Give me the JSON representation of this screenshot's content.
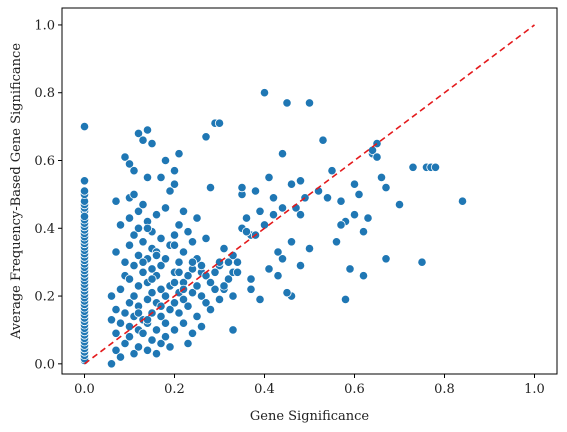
{
  "chart_data": {
    "type": "scatter",
    "title": "",
    "xlabel": "Gene Significance",
    "ylabel": "Average Frequency-Based Gene Significance",
    "xlim": [
      -0.05,
      1.05
    ],
    "ylim": [
      -0.03,
      1.05
    ],
    "x_ticks": [
      "0.0",
      "0.2",
      "0.4",
      "0.6",
      "0.8",
      "1.0"
    ],
    "y_ticks": [
      "0.0",
      "0.2",
      "0.4",
      "0.6",
      "0.8",
      "1.0"
    ],
    "grid": false,
    "legend": "none",
    "point_color": "#1f77b4",
    "point_edge_color": "#ffffff",
    "reference_line": {
      "from": [
        0,
        0
      ],
      "to": [
        1,
        1
      ],
      "color": "#e41a1c",
      "style": "dashed"
    },
    "series": [
      {
        "x": [
          0,
          0,
          0,
          0,
          0,
          0,
          0,
          0,
          0,
          0,
          0,
          0,
          0,
          0,
          0,
          0,
          0,
          0,
          0,
          0,
          0,
          0,
          0,
          0,
          0,
          0,
          0,
          0,
          0,
          0,
          0,
          0,
          0,
          0,
          0,
          0,
          0,
          0,
          0,
          0,
          0,
          0,
          0,
          0,
          0,
          0,
          0,
          0,
          0,
          0,
          0,
          0,
          0,
          0,
          0,
          0,
          0,
          0,
          0,
          0,
          0,
          0,
          0,
          0,
          0,
          0,
          0,
          0,
          0,
          0,
          0,
          0,
          0,
          0,
          0,
          0,
          0,
          0,
          0,
          0,
          0,
          0,
          0,
          0,
          0,
          0,
          0,
          0,
          0,
          0,
          0,
          0,
          0,
          0,
          0,
          0.06,
          0.06,
          0.06,
          0.07,
          0.07,
          0.07,
          0.07,
          0.07,
          0.08,
          0.08,
          0.08,
          0.08,
          0.09,
          0.09,
          0.09,
          0.09,
          0.09,
          0.1,
          0.1,
          0.1,
          0.1,
          0.1,
          0.1,
          0.1,
          0.1,
          0.11,
          0.11,
          0.11,
          0.11,
          0.11,
          0.11,
          0.11,
          0.12,
          0.12,
          0.12,
          0.12,
          0.12,
          0.12,
          0.12,
          0.12,
          0.13,
          0.13,
          0.13,
          0.13,
          0.13,
          0.13,
          0.14,
          0.14,
          0.14,
          0.14,
          0.14,
          0.14,
          0.14,
          0.14,
          0.15,
          0.15,
          0.15,
          0.15,
          0.15,
          0.15,
          0.15,
          0.16,
          0.16,
          0.16,
          0.16,
          0.16,
          0.16,
          0.17,
          0.17,
          0.17,
          0.17,
          0.17,
          0.17,
          0.18,
          0.18,
          0.18,
          0.18,
          0.18,
          0.19,
          0.19,
          0.19,
          0.19,
          0.19,
          0.2,
          0.2,
          0.2,
          0.2,
          0.2,
          0.2,
          0.21,
          0.21,
          0.21,
          0.21,
          0.21,
          0.22,
          0.22,
          0.22,
          0.22,
          0.22,
          0.23,
          0.23,
          0.23,
          0.23,
          0.24,
          0.24,
          0.24,
          0.24,
          0.25,
          0.25,
          0.25,
          0.25,
          0.26,
          0.26,
          0.26,
          0.27,
          0.27,
          0.27,
          0.28,
          0.28,
          0.28,
          0.29,
          0.29,
          0.3,
          0.3,
          0.3,
          0.31,
          0.31,
          0.32,
          0.32,
          0.33,
          0.33,
          0.34,
          0.35,
          0.35,
          0.11,
          0.12,
          0.13,
          0.14,
          0.14,
          0.15,
          0.16,
          0.17,
          0.18,
          0.2,
          0.21,
          0.22,
          0.24,
          0.25,
          0.26,
          0.27,
          0.29,
          0.3,
          0.31,
          0.33,
          0.35,
          0.36,
          0.37,
          0.38,
          0.4,
          0.41,
          0.42,
          0.43,
          0.44,
          0.45,
          0.46,
          0.47,
          0.48,
          0.49,
          0.5,
          0.52,
          0.53,
          0.54,
          0.55,
          0.57,
          0.58,
          0.6,
          0.61,
          0.62,
          0.63,
          0.64,
          0.65,
          0.66,
          0.67,
          0.7,
          0.73,
          0.75,
          0.76,
          0.77,
          0.78,
          0.84,
          0.2,
          0.24,
          0.28,
          0.31,
          0.34,
          0.37,
          0.39,
          0.41,
          0.43,
          0.44,
          0.45,
          0.46,
          0.48,
          0.5,
          0.52,
          0.56,
          0.58,
          0.59,
          0.6,
          0.62,
          0.64,
          0.65,
          0.67,
          0.37,
          0.39,
          0.4,
          0.42,
          0.44,
          0.46,
          0.48,
          0.57,
          0.61,
          0.33,
          0.36,
          0.38
        ],
        "y": [
          0.01,
          0.02,
          0.03,
          0.04,
          0.05,
          0.06,
          0.07,
          0.08,
          0.09,
          0.1,
          0.11,
          0.12,
          0.13,
          0.14,
          0.15,
          0.16,
          0.17,
          0.18,
          0.19,
          0.2,
          0.21,
          0.22,
          0.23,
          0.24,
          0.25,
          0.26,
          0.27,
          0.28,
          0.29,
          0.3,
          0.31,
          0.32,
          0.33,
          0.34,
          0.35,
          0.36,
          0.37,
          0.38,
          0.39,
          0.4,
          0.41,
          0.42,
          0.43,
          0.44,
          0.45,
          0.46,
          0.47,
          0.48,
          0.5,
          0.51,
          0.54,
          0.7,
          0.015,
          0.025,
          0.035,
          0.045,
          0.055,
          0.065,
          0.075,
          0.085,
          0.095,
          0.105,
          0.115,
          0.125,
          0.135,
          0.145,
          0.155,
          0.165,
          0.175,
          0.185,
          0.195,
          0.205,
          0.215,
          0.225,
          0.235,
          0.245,
          0.255,
          0.265,
          0.275,
          0.285,
          0.295,
          0.305,
          0.315,
          0.325,
          0.335,
          0.345,
          0.355,
          0.365,
          0.375,
          0.385,
          0.395,
          0.405,
          0.415,
          0.425,
          0.435,
          0.0,
          0.13,
          0.2,
          0.04,
          0.09,
          0.16,
          0.33,
          0.48,
          0.02,
          0.12,
          0.22,
          0.41,
          0.06,
          0.15,
          0.26,
          0.3,
          0.61,
          0.08,
          0.11,
          0.18,
          0.25,
          0.35,
          0.43,
          0.49,
          0.59,
          0.03,
          0.14,
          0.2,
          0.29,
          0.38,
          0.5,
          0.57,
          0.05,
          0.1,
          0.17,
          0.23,
          0.32,
          0.4,
          0.45,
          0.68,
          0.09,
          0.13,
          0.27,
          0.36,
          0.47,
          0.66,
          0.04,
          0.12,
          0.19,
          0.24,
          0.31,
          0.42,
          0.55,
          0.69,
          0.07,
          0.15,
          0.21,
          0.28,
          0.34,
          0.39,
          0.65,
          0.03,
          0.1,
          0.18,
          0.26,
          0.33,
          0.44,
          0.06,
          0.14,
          0.22,
          0.29,
          0.37,
          0.55,
          0.08,
          0.12,
          0.2,
          0.31,
          0.46,
          0.05,
          0.16,
          0.23,
          0.35,
          0.51,
          0.1,
          0.18,
          0.27,
          0.38,
          0.53,
          0.57,
          0.15,
          0.21,
          0.3,
          0.41,
          0.62,
          0.12,
          0.19,
          0.24,
          0.33,
          0.45,
          0.06,
          0.17,
          0.26,
          0.39,
          0.09,
          0.21,
          0.28,
          0.36,
          0.14,
          0.23,
          0.31,
          0.43,
          0.11,
          0.2,
          0.27,
          0.18,
          0.26,
          0.67,
          0.16,
          0.24,
          0.52,
          0.22,
          0.71,
          0.19,
          0.29,
          0.71,
          0.23,
          0.34,
          0.25,
          0.3,
          0.1,
          0.2,
          0.3,
          0.4,
          0.5,
          0.2,
          0.15,
          0.3,
          0.13,
          0.4,
          0.25,
          0.32,
          0.17,
          0.6,
          0.35,
          0.27,
          0.22,
          0.36,
          0.23,
          0.29,
          0.37,
          0.27,
          0.3,
          0.22,
          0.27,
          0.52,
          0.43,
          0.38,
          0.51,
          0.8,
          0.55,
          0.49,
          0.33,
          0.62,
          0.77,
          0.2,
          0.46,
          0.54,
          0.49,
          0.77,
          0.51,
          0.66,
          0.49,
          0.57,
          0.48,
          0.19,
          0.44,
          0.5,
          0.26,
          0.43,
          0.62,
          0.65,
          0.55,
          0.31,
          0.47,
          0.58,
          0.3,
          0.58,
          0.58,
          0.58,
          0.48,
          0.24,
          0.3,
          0.24,
          0.23,
          0.27,
          0.22,
          0.19,
          0.28,
          0.26,
          0.31,
          0.21,
          0.36,
          0.29,
          0.34,
          0.51,
          0.36,
          0.42,
          0.28,
          0.53,
          0.39,
          0.63,
          0.61,
          0.52,
          0.25,
          0.45,
          0.41,
          0.44,
          0.46,
          0.53,
          0.44,
          0.41,
          0.5,
          0.32,
          0.39,
          0.38
        ]
      }
    ]
  }
}
